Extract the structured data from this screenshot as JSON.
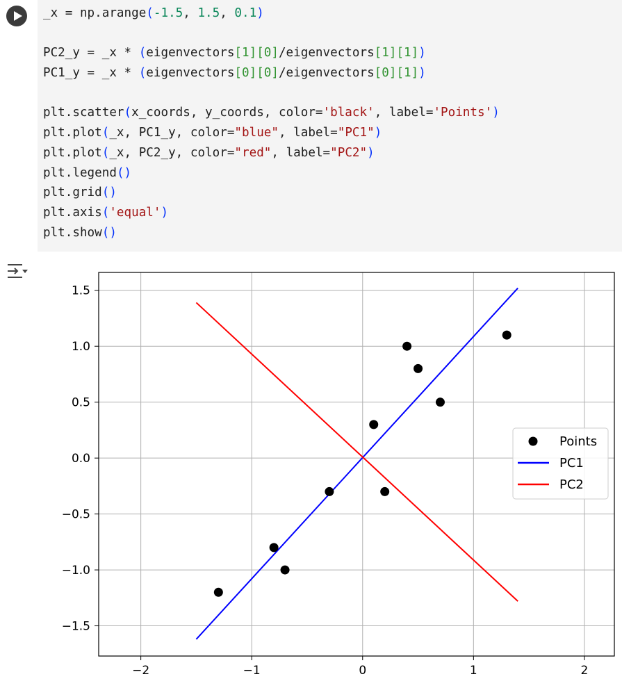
{
  "cell": {
    "run_button": "play-icon",
    "code_lines": [
      [
        {
          "t": "_x = np.arange"
        },
        {
          "t": "(",
          "c": "paren"
        },
        {
          "t": "-1.5",
          "c": "num"
        },
        {
          "t": ", "
        },
        {
          "t": "1.5",
          "c": "num"
        },
        {
          "t": ", "
        },
        {
          "t": "0.1",
          "c": "num"
        },
        {
          "t": ")",
          "c": "paren"
        }
      ],
      [],
      [
        {
          "t": "PC2_y = _x * "
        },
        {
          "t": "(",
          "c": "paren"
        },
        {
          "t": "eigenvectors"
        },
        {
          "t": "[1]",
          "c": "paren2"
        },
        {
          "t": "[0]",
          "c": "paren2"
        },
        {
          "t": "/eigenvectors"
        },
        {
          "t": "[1]",
          "c": "paren2"
        },
        {
          "t": "[1]",
          "c": "paren2"
        },
        {
          "t": ")",
          "c": "paren"
        }
      ],
      [
        {
          "t": "PC1_y = _x * "
        },
        {
          "t": "(",
          "c": "paren"
        },
        {
          "t": "eigenvectors"
        },
        {
          "t": "[0]",
          "c": "paren2"
        },
        {
          "t": "[0]",
          "c": "paren2"
        },
        {
          "t": "/eigenvectors"
        },
        {
          "t": "[0]",
          "c": "paren2"
        },
        {
          "t": "[1]",
          "c": "paren2"
        },
        {
          "t": ")",
          "c": "paren"
        }
      ],
      [],
      [
        {
          "t": "plt.scatter"
        },
        {
          "t": "(",
          "c": "paren"
        },
        {
          "t": "x_coords, y_coords, color="
        },
        {
          "t": "'black'",
          "c": "str"
        },
        {
          "t": ", label="
        },
        {
          "t": "'Points'",
          "c": "str"
        },
        {
          "t": ")",
          "c": "paren"
        }
      ],
      [
        {
          "t": "plt.plot"
        },
        {
          "t": "(",
          "c": "paren"
        },
        {
          "t": "_x, PC1_y, color="
        },
        {
          "t": "\"blue\"",
          "c": "str"
        },
        {
          "t": ", label="
        },
        {
          "t": "\"PC1\"",
          "c": "str"
        },
        {
          "t": ")",
          "c": "paren"
        }
      ],
      [
        {
          "t": "plt.plot"
        },
        {
          "t": "(",
          "c": "paren"
        },
        {
          "t": "_x, PC2_y, color="
        },
        {
          "t": "\"red\"",
          "c": "str"
        },
        {
          "t": ", label="
        },
        {
          "t": "\"PC2\"",
          "c": "str"
        },
        {
          "t": ")",
          "c": "paren"
        }
      ],
      [
        {
          "t": "plt.legend"
        },
        {
          "t": "()",
          "c": "paren"
        }
      ],
      [
        {
          "t": "plt.grid"
        },
        {
          "t": "()",
          "c": "paren"
        }
      ],
      [
        {
          "t": "plt.axis"
        },
        {
          "t": "(",
          "c": "paren"
        },
        {
          "t": "'equal'",
          "c": "str"
        },
        {
          "t": ")",
          "c": "paren"
        }
      ],
      [
        {
          "t": "plt.show"
        },
        {
          "t": "()",
          "c": "paren"
        }
      ]
    ]
  },
  "output": {
    "toggle_icon": "output-collapse-icon"
  },
  "chart_data": {
    "type": "scatter",
    "xlim": [
      -2.38,
      2.27
    ],
    "ylim": [
      -1.77,
      1.66
    ],
    "xticks": [
      -2,
      -1,
      0,
      1,
      2
    ],
    "xtick_labels": [
      "−2",
      "−1",
      "0",
      "1",
      "2"
    ],
    "yticks": [
      1.5,
      1.0,
      0.5,
      0.0,
      -0.5,
      -1.0,
      -1.5
    ],
    "ytick_labels": [
      "1.5",
      "1.0",
      "0.5",
      "0.0",
      "−0.5",
      "−1.0",
      "−1.5"
    ],
    "grid": true,
    "legend_placement": "center-right",
    "legend": [
      {
        "label": "Points",
        "kind": "marker",
        "color": "#000000"
      },
      {
        "label": "PC1",
        "kind": "line",
        "color": "#0000ff"
      },
      {
        "label": "PC2",
        "kind": "line",
        "color": "#ff0000"
      }
    ],
    "series": [
      {
        "name": "Points",
        "kind": "scatter",
        "color": "#000000",
        "x": [
          -1.3,
          -0.8,
          -0.7,
          -0.3,
          0.1,
          0.2,
          0.4,
          0.5,
          0.7,
          1.3
        ],
        "y": [
          -1.2,
          -0.8,
          -1.0,
          -0.3,
          0.3,
          -0.3,
          1.0,
          0.8,
          0.5,
          1.1
        ]
      },
      {
        "name": "PC1",
        "kind": "line",
        "color": "#0000ff",
        "x": [
          -1.5,
          1.4
        ],
        "y": [
          -1.62,
          1.52
        ]
      },
      {
        "name": "PC2",
        "kind": "line",
        "color": "#ff0000",
        "x": [
          -1.5,
          1.4
        ],
        "y": [
          1.39,
          -1.28
        ]
      }
    ]
  }
}
